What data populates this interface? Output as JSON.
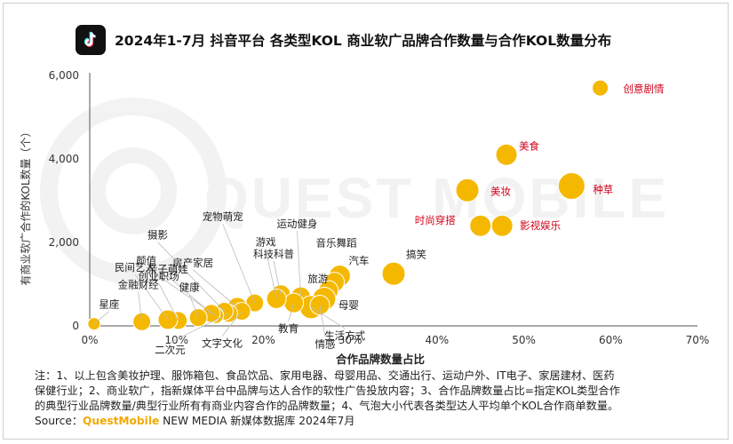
{
  "header": {
    "title": "2024年1-7月 抖音平台 各类型KOL 商业软广品牌合作数量与合作KOL数量分布",
    "logo_icon": "douyin-logo-icon"
  },
  "watermark": {
    "text": "QUEST MOBILE"
  },
  "chart_data": {
    "type": "scatter",
    "title": "2024年1-7月 抖音平台 各类型KOL 商业软广品牌合作数量与合作KOL数量分布",
    "xlabel": "合作品牌数量占比",
    "ylabel": "有商业软广合作的KOL数量（个）",
    "xlim": [
      0,
      70
    ],
    "ylim": [
      0,
      6000
    ],
    "xticks": [
      "0%",
      "10%",
      "20%",
      "30%",
      "40%",
      "50%",
      "60%",
      "70%"
    ],
    "yticks": [
      "0",
      "2,000",
      "4,000",
      "6,000"
    ],
    "bubble_size_meaning": "各类型达人平均单个KOL合作商单数量",
    "bubble_color": "#f5b800",
    "highlight_color": "#d0021b",
    "points": [
      {
        "label": "创意剧情",
        "x": 58.8,
        "y": 5700,
        "size": 9,
        "highlight": true
      },
      {
        "label": "美食",
        "x": 48.0,
        "y": 4100,
        "size": 12,
        "highlight": true
      },
      {
        "label": "种草",
        "x": 55.5,
        "y": 3350,
        "size": 15,
        "highlight": true
      },
      {
        "label": "美妆",
        "x": 43.5,
        "y": 3250,
        "size": 13,
        "highlight": true
      },
      {
        "label": "影视娱乐",
        "x": 47.5,
        "y": 2400,
        "size": 12,
        "highlight": true
      },
      {
        "label": "时尚穿搭",
        "x": 45.0,
        "y": 2400,
        "size": 12,
        "highlight": true
      },
      {
        "label": "搞笑",
        "x": 35.0,
        "y": 1250,
        "size": 13,
        "highlight": false
      },
      {
        "label": "汽车",
        "x": 28.8,
        "y": 1200,
        "size": 12,
        "highlight": false
      },
      {
        "label": "音乐舞蹈",
        "x": 28.2,
        "y": 1050,
        "size": 11,
        "highlight": false
      },
      {
        "label": "旅游",
        "x": 27.5,
        "y": 850,
        "size": 11,
        "highlight": false
      },
      {
        "label": "母婴",
        "x": 27.0,
        "y": 650,
        "size": 13,
        "highlight": false
      },
      {
        "label": "运动健身",
        "x": 24.3,
        "y": 700,
        "size": 11,
        "highlight": false
      },
      {
        "label": "科技科普",
        "x": 22.0,
        "y": 750,
        "size": 11,
        "highlight": false
      },
      {
        "label": "生活方式",
        "x": 25.5,
        "y": 450,
        "size": 13,
        "highlight": false
      },
      {
        "label": "情感",
        "x": 26.5,
        "y": 500,
        "size": 11,
        "highlight": false
      },
      {
        "label": "教育",
        "x": 23.5,
        "y": 550,
        "size": 11,
        "highlight": false
      },
      {
        "label": "游戏",
        "x": 21.5,
        "y": 650,
        "size": 11,
        "highlight": false
      },
      {
        "label": "宠物萌宠",
        "x": 19.0,
        "y": 550,
        "size": 10,
        "highlight": false
      },
      {
        "label": "房产家居",
        "x": 17.0,
        "y": 450,
        "size": 11,
        "highlight": false
      },
      {
        "label": "文字文化",
        "x": 17.5,
        "y": 350,
        "size": 10,
        "highlight": false
      },
      {
        "label": "二次元",
        "x": 16.0,
        "y": 300,
        "size": 10,
        "highlight": false
      },
      {
        "label": "摄影",
        "x": 15.5,
        "y": 350,
        "size": 10,
        "highlight": false
      },
      {
        "label": "颜值",
        "x": 14.5,
        "y": 250,
        "size": 9,
        "highlight": false
      },
      {
        "label": "亲子萌娃",
        "x": 14.0,
        "y": 300,
        "size": 10,
        "highlight": false
      },
      {
        "label": "健康",
        "x": 12.5,
        "y": 200,
        "size": 10,
        "highlight": false
      },
      {
        "label": "创业职场",
        "x": 10.2,
        "y": 130,
        "size": 10,
        "highlight": false
      },
      {
        "label": "民间艺人",
        "x": 9.0,
        "y": 150,
        "size": 11,
        "highlight": false
      },
      {
        "label": "金融财经",
        "x": 6.0,
        "y": 100,
        "size": 10,
        "highlight": false
      },
      {
        "label": "星座",
        "x": 0.5,
        "y": 50,
        "size": 7,
        "highlight": false
      }
    ]
  },
  "footnote": {
    "line1": "注：1、以上包含美妆护理、服饰箱包、食品饮品、家用电器、母婴用品、交通出行、运动户外、IT电子、家居建材、医药",
    "line2": "保健行业；2、商业软广，指新媒体平台中品牌与达人合作的软性广告投放内容；3、合作品牌数量占比=指定KOL类型合作",
    "line3": "的典型行业品牌数量/典型行业所有有商业内容合作的品牌数量；4、气泡大小代表各类型达人平均单个KOL合作商单数量。",
    "source_prefix": "Source：",
    "source_brand": "QuestMobile",
    "source_suffix": " NEW MEDIA 新媒体数据库 2024年7月"
  }
}
